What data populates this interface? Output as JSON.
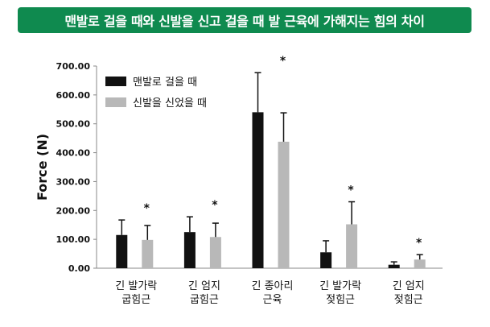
{
  "banner": {
    "title": "맨발로 걸을 때와 신발을 신고 걸을 때 발 근육에 가해지는 힘의 차이"
  },
  "colors": {
    "banner_bg": "#0f8a4f",
    "barefoot": "#111111",
    "shoes": "#b8b8b8"
  },
  "chart_data": {
    "type": "bar",
    "title": "",
    "xlabel": "",
    "ylabel": "Force (N)",
    "ylim": [
      0,
      700
    ],
    "yticks": [
      "0.00",
      "100.00",
      "200.00",
      "300.00",
      "400.00",
      "500.00",
      "600.00",
      "700.00"
    ],
    "legend_position": "top-left",
    "grid": false,
    "categories": [
      [
        "긴 발가락",
        "굽힘근"
      ],
      [
        "긴 엄지",
        "굽힘근"
      ],
      [
        "긴 종아리",
        "근육"
      ],
      [
        "긴 발가락",
        "젖힘근"
      ],
      [
        "긴 엄지",
        "젖힘근"
      ]
    ],
    "series": [
      {
        "name": "맨발로 걸을 때",
        "values": [
          115,
          125,
          540,
          55,
          12
        ],
        "errors": [
          52,
          53,
          137,
          40,
          10
        ]
      },
      {
        "name": "신발을 신었을 때",
        "values": [
          98,
          108,
          438,
          152,
          30
        ],
        "errors": [
          50,
          48,
          100,
          78,
          17
        ]
      }
    ],
    "annotations": [
      "*",
      "*",
      "*",
      "*",
      "*"
    ]
  }
}
